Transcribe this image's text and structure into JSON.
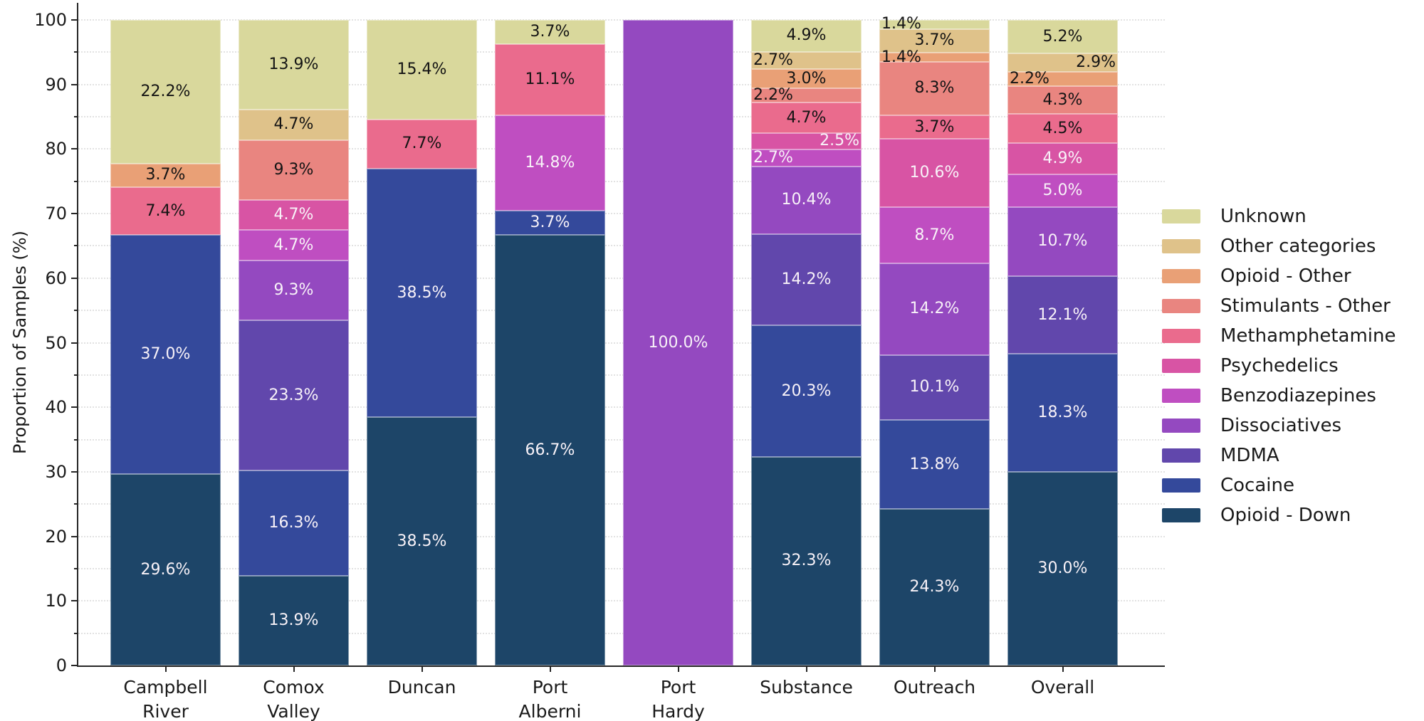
{
  "chart_data": {
    "type": "bar",
    "stacked": true,
    "title": "",
    "xlabel": "",
    "ylabel": "Proportion of Samples (%)",
    "ylim": [
      0,
      100
    ],
    "ytick_major_step": 10,
    "ytick_minor_step": 5,
    "grid": {
      "orientation": "horizontal",
      "style": "dotted",
      "every": 5
    },
    "legend_position": "right of plot, vertical",
    "categories": [
      "Campbell River",
      "Comox Valley",
      "Duncan",
      "Port Alberni",
      "Port Hardy",
      "Substance",
      "Outreach",
      "Overall"
    ],
    "category_lines": [
      [
        "Campbell",
        "River"
      ],
      [
        "Comox",
        "Valley"
      ],
      [
        "Duncan"
      ],
      [
        "Port",
        "Alberni"
      ],
      [
        "Port",
        "Hardy"
      ],
      [
        "Substance"
      ],
      [
        "Outreach"
      ],
      [
        "Overall"
      ]
    ],
    "stack_order_note": "series listed top-to-bottom as in legend; bars are stacked bottom-up in reverse order (Opioid - Down at bottom, Unknown at top)",
    "series": [
      {
        "name": "Unknown",
        "color": "#d9d89c",
        "label_color": "dark",
        "values": [
          22.2,
          13.9,
          15.4,
          3.7,
          null,
          4.9,
          1.4,
          5.2
        ],
        "align": [
          null,
          null,
          null,
          null,
          null,
          null,
          "left",
          null
        ]
      },
      {
        "name": "Other categories",
        "color": "#dfc28a",
        "label_color": "dark",
        "values": [
          null,
          4.7,
          null,
          null,
          null,
          2.7,
          3.7,
          2.9
        ],
        "align": [
          null,
          null,
          null,
          null,
          null,
          "left",
          null,
          "right"
        ]
      },
      {
        "name": "Opioid - Other",
        "color": "#e9a076",
        "label_color": "dark",
        "values": [
          3.7,
          null,
          null,
          null,
          null,
          3.0,
          1.4,
          2.2
        ],
        "align": [
          null,
          null,
          null,
          null,
          null,
          null,
          "left",
          "left"
        ]
      },
      {
        "name": "Stimulants - Other",
        "color": "#e98580",
        "label_color": "dark",
        "values": [
          null,
          9.3,
          null,
          null,
          null,
          2.2,
          8.3,
          4.3
        ],
        "align": [
          null,
          null,
          null,
          null,
          null,
          "left",
          null,
          null
        ]
      },
      {
        "name": "Methamphetamine",
        "color": "#ea6b8d",
        "label_color": "dark",
        "values": [
          7.4,
          null,
          7.7,
          11.1,
          null,
          4.7,
          3.7,
          4.5
        ],
        "align": [
          null,
          null,
          null,
          null,
          null,
          null,
          null,
          null
        ]
      },
      {
        "name": "Psychedelics",
        "color": "#d854a4",
        "label_color": "light",
        "values": [
          null,
          4.7,
          null,
          null,
          null,
          2.5,
          10.6,
          4.9
        ],
        "align": [
          null,
          null,
          null,
          null,
          null,
          "right",
          null,
          null
        ]
      },
      {
        "name": "Benzodiazepines",
        "color": "#bf4ec1",
        "label_color": "light",
        "values": [
          null,
          4.7,
          null,
          14.8,
          null,
          2.7,
          8.7,
          5.0
        ],
        "align": [
          null,
          null,
          null,
          null,
          null,
          "left",
          null,
          null
        ]
      },
      {
        "name": "Dissociatives",
        "color": "#9449c0",
        "label_color": "light",
        "values": [
          null,
          9.3,
          null,
          null,
          100.0,
          10.4,
          14.2,
          10.7
        ],
        "align": [
          null,
          null,
          null,
          null,
          null,
          null,
          null,
          null
        ]
      },
      {
        "name": "MDMA",
        "color": "#6147ac",
        "label_color": "light",
        "values": [
          null,
          23.3,
          null,
          null,
          null,
          14.2,
          10.1,
          12.1
        ],
        "align": [
          null,
          null,
          null,
          null,
          null,
          null,
          null,
          null
        ]
      },
      {
        "name": "Cocaine",
        "color": "#34499b",
        "label_color": "light",
        "values": [
          37.0,
          16.3,
          38.5,
          3.7,
          null,
          20.3,
          13.8,
          18.3
        ],
        "align": [
          null,
          null,
          null,
          null,
          null,
          null,
          null,
          null
        ]
      },
      {
        "name": "Opioid - Down",
        "color": "#1d4568",
        "label_color": "light",
        "values": [
          29.6,
          13.9,
          38.5,
          66.7,
          null,
          32.3,
          24.3,
          30.0
        ],
        "align": [
          null,
          null,
          null,
          null,
          null,
          null,
          null,
          null
        ]
      }
    ],
    "axis_colors": {
      "spine": "#262626",
      "tick_label": "#1a1a1a",
      "grid": "#e2e2e2"
    },
    "bar_label_colors": {
      "dark": "#141414",
      "light": "#f8f2f8"
    }
  }
}
